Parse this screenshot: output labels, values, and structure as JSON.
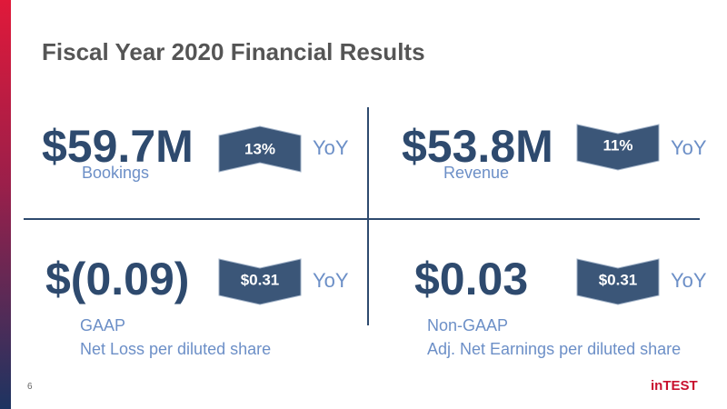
{
  "header": {
    "title": "Fiscal Year 2020 Financial Results"
  },
  "metrics": [
    {
      "value": "$59.7M",
      "change": "13%",
      "period": "YoY",
      "label": "Bookings"
    },
    {
      "value": "$53.8M",
      "change": "11%",
      "period": "YoY",
      "label": "Revenue"
    },
    {
      "value": "$(0.09)",
      "change": "$0.31",
      "period": "YoY",
      "label": "GAAP",
      "sublabel": "Net Loss per diluted share"
    },
    {
      "value": "$0.03",
      "change": "$0.31",
      "period": "YoY",
      "label": "Non-GAAP",
      "sublabel": "Adj. Net Earnings per diluted share"
    }
  ],
  "footer": {
    "page": "6",
    "logo": "inTEST"
  }
}
